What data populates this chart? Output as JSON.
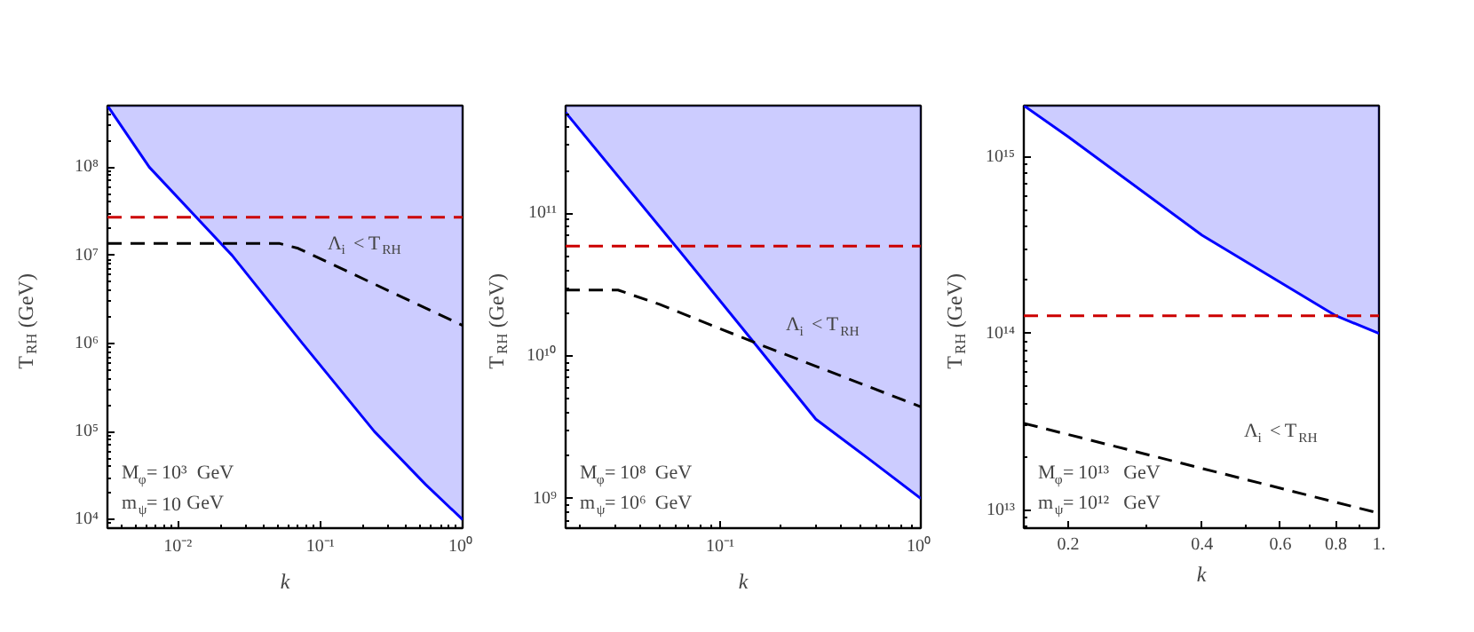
{
  "chart_data": [
    {
      "type": "line",
      "xlabel": "k",
      "ylabel": "T$_{RH}$ (GeV)",
      "log": "xy",
      "grid": false,
      "xlim": [
        0.0032,
        1
      ],
      "ylim": [
        8000,
        500000000
      ],
      "xticks": [
        {
          "value": 0.01,
          "label": "10⁻²"
        },
        {
          "value": 0.1,
          "label": "10⁻¹"
        },
        {
          "value": 1,
          "label": "10⁰"
        }
      ],
      "yticks": [
        {
          "value": 10000,
          "label": "10⁴"
        },
        {
          "value": 100000,
          "label": "10⁵"
        },
        {
          "value": 1000000,
          "label": "10⁶"
        },
        {
          "value": 10000000,
          "label": "10⁷"
        },
        {
          "value": 100000000,
          "label": "10⁸"
        }
      ],
      "series": [
        {
          "color": "#0000ff",
          "line_style": "solid",
          "x": [
            0.0032,
            0.0063,
            0.024,
            0.075,
            0.24,
            0.55,
            1
          ],
          "values": [
            500000000,
            100000000,
            10000000,
            1000000,
            100000,
            25000,
            10000
          ],
          "lower": [
            500000000,
            100000000,
            10000000,
            1000000,
            100000,
            25000,
            10000
          ],
          "upper": [
            500000000,
            500000000,
            500000000,
            500000000,
            500000000,
            500000000,
            500000000
          ]
        },
        {
          "color": "#000000",
          "line_style": "dashed",
          "x": [
            0.0032,
            0.052,
            0.07,
            1
          ],
          "values": [
            13600000,
            13600000,
            12000000,
            1600000
          ]
        }
      ],
      "ref_lines": [
        {
          "axis": "y",
          "value": 27000000,
          "color": "#cc0000",
          "line_style": "dashed"
        }
      ],
      "annotations": [
        "M$_{φ}$= 10³ GeV",
        "m$_{ψ}$= 10 GeV",
        "Λ$_{i}$ < T$_{RH}$"
      ]
    },
    {
      "type": "line",
      "xlabel": "k",
      "ylabel": "T$_{RH}$ (GeV)",
      "log": "xy",
      "grid": false,
      "xlim": [
        0.017,
        1
      ],
      "ylim": [
        620000000,
        570000000000
      ],
      "xticks": [
        {
          "value": 0.1,
          "label": "10⁻¹"
        },
        {
          "value": 1,
          "label": "10⁰"
        }
      ],
      "yticks": [
        {
          "value": 1000000000,
          "label": "10⁹"
        },
        {
          "value": 10000000000,
          "label": "10¹⁰"
        },
        {
          "value": 100000000000,
          "label": "10¹¹"
        }
      ],
      "series": [
        {
          "color": "#0000ff",
          "line_style": "solid",
          "x": [
            0.017,
            0.06,
            0.147,
            0.3,
            0.55,
            1
          ],
          "values": [
            510000000000,
            59000000000,
            12500000000,
            3600000000,
            1900000000,
            1000000000
          ],
          "lower": [
            510000000000,
            59000000000,
            12500000000,
            3600000000,
            1900000000,
            1000000000
          ],
          "upper": [
            570000000000,
            570000000000,
            570000000000,
            570000000000,
            570000000000,
            570000000000
          ]
        },
        {
          "color": "#000000",
          "line_style": "dashed",
          "x": [
            0.017,
            0.031,
            0.05,
            0.147,
            1
          ],
          "values": [
            29000000000,
            29000000000,
            23000000000,
            12500000000,
            4400000000
          ]
        }
      ],
      "ref_lines": [
        {
          "axis": "y",
          "value": 59000000000,
          "color": "#cc0000",
          "line_style": "dashed"
        }
      ],
      "annotations": [
        "M$_{φ}$= 10⁸ GeV",
        "m$_{ψ}$= 10⁶ GeV",
        "Λ$_{i}$ < T$_{RH}$"
      ]
    },
    {
      "type": "line",
      "xlabel": "k",
      "ylabel": "T$_{RH}$ (GeV)",
      "log": "xy",
      "grid": false,
      "xlim": [
        0.159,
        1
      ],
      "ylim": [
        7900000000000,
        1950000000000000
      ],
      "xticks": [
        0.2,
        0.4,
        0.6,
        0.8,
        {
          "value": 1,
          "label": "1."
        }
      ],
      "yticks": [
        {
          "value": 10000000000000,
          "label": "10¹³"
        },
        {
          "value": 100000000000000,
          "label": "10¹⁴"
        },
        {
          "value": 1000000000000000,
          "label": "10¹⁵"
        }
      ],
      "series": [
        {
          "color": "#0000ff",
          "line_style": "solid",
          "x": [
            0.159,
            0.2,
            0.4,
            0.8,
            1
          ],
          "values": [
            1950000000000000,
            1300000000000000,
            360000000000000,
            126000000000000,
            100000000000000
          ],
          "lower": [
            1950000000000000,
            1300000000000000,
            360000000000000,
            126000000000000,
            100000000000000
          ],
          "upper": [
            1950000000000000,
            1950000000000000,
            1950000000000000,
            1950000000000000,
            1950000000000000
          ]
        },
        {
          "color": "#000000",
          "line_style": "dashed",
          "x": [
            0.159,
            1
          ],
          "values": [
            31000000000000,
            9600000000000
          ]
        }
      ],
      "ref_lines": [
        {
          "axis": "y",
          "value": 126000000000000,
          "color": "#cc0000",
          "line_style": "dashed"
        }
      ],
      "annotations": [
        "M$_{φ}$= 10¹³ GeV",
        "m$_{ψ}$= 10¹² GeV",
        "Λ$_{i}$ < T$_{RH}$"
      ]
    }
  ]
}
